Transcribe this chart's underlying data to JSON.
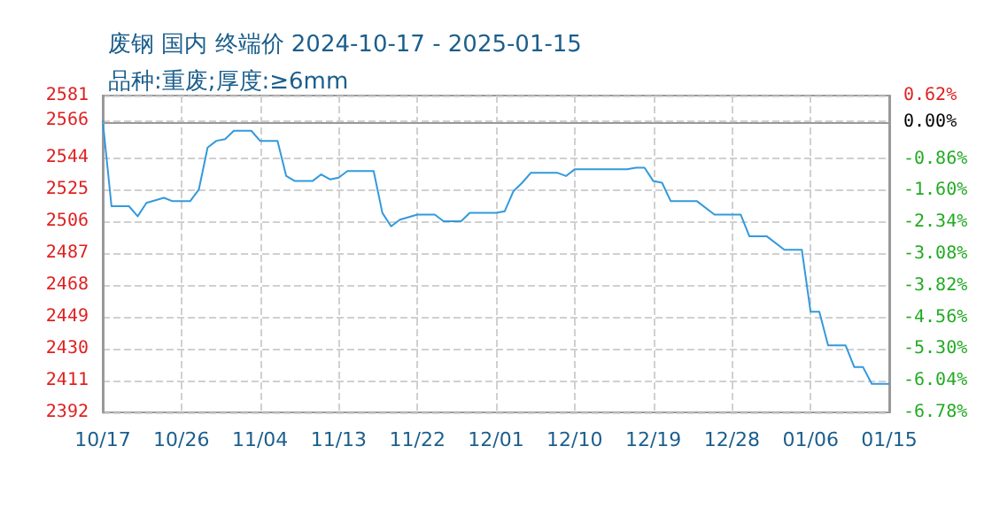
{
  "chart_data": {
    "type": "line",
    "title": "废钢 国内 终端价 2024-10-17 - 2025-01-15",
    "subtitle": "品种:重废;厚度:≥6mm",
    "x": [
      "2024-10-17",
      "2024-10-18",
      "2024-10-20",
      "2024-10-21",
      "2024-10-22",
      "2024-10-24",
      "2024-10-25",
      "2024-10-27",
      "2024-10-28",
      "2024-10-29",
      "2024-10-30",
      "2024-10-31",
      "2024-11-01",
      "2024-11-03",
      "2024-11-04",
      "2024-11-06",
      "2024-11-07",
      "2024-11-08",
      "2024-11-10",
      "2024-11-11",
      "2024-11-12",
      "2024-11-13",
      "2024-11-14",
      "2024-11-17",
      "2024-11-18",
      "2024-11-19",
      "2024-11-20",
      "2024-11-22",
      "2024-11-24",
      "2024-11-25",
      "2024-11-27",
      "2024-11-28",
      "2024-12-01",
      "2024-12-02",
      "2024-12-03",
      "2024-12-04",
      "2024-12-05",
      "2024-12-08",
      "2024-12-09",
      "2024-12-10",
      "2024-12-16",
      "2024-12-17",
      "2024-12-18",
      "2024-12-19",
      "2024-12-20",
      "2024-12-21",
      "2024-12-24",
      "2024-12-26",
      "2024-12-29",
      "2024-12-30",
      "2025-01-01",
      "2025-01-03",
      "2025-01-05",
      "2025-01-06",
      "2025-01-07",
      "2025-01-08",
      "2025-01-10",
      "2025-01-11",
      "2025-01-12",
      "2025-01-13",
      "2025-01-15"
    ],
    "series": [
      {
        "color": "#3399dd",
        "values": [
          2566,
          2515,
          2515,
          2509,
          2517,
          2520,
          2518,
          2518,
          2525,
          2550,
          2554,
          2555,
          2560,
          2560,
          2554,
          2554,
          2533,
          2530,
          2530,
          2534,
          2531,
          2532,
          2536,
          2536,
          2511,
          2503,
          2507,
          2510,
          2510,
          2506,
          2506,
          2511,
          2511,
          2512,
          2524,
          2529,
          2535,
          2535,
          2533,
          2537,
          2537,
          2538,
          2538,
          2530,
          2529,
          2518,
          2518,
          2510,
          2510,
          2497,
          2497,
          2489,
          2489,
          2452,
          2452,
          2432,
          2432,
          2419,
          2419,
          2409,
          2409
        ]
      }
    ],
    "xlim": [
      "2024-10-17",
      "2025-01-15"
    ],
    "xticks": [
      {
        "value": "2024-10-17",
        "label": "10/17"
      },
      {
        "value": "2024-10-26",
        "label": "10/26"
      },
      {
        "value": "2024-11-04",
        "label": "11/04"
      },
      {
        "value": "2024-11-13",
        "label": "11/13"
      },
      {
        "value": "2024-11-22",
        "label": "11/22"
      },
      {
        "value": "2024-12-01",
        "label": "12/01"
      },
      {
        "value": "2024-12-10",
        "label": "12/10"
      },
      {
        "value": "2024-12-19",
        "label": "12/19"
      },
      {
        "value": "2024-12-28",
        "label": "12/28"
      },
      {
        "value": "2025-01-06",
        "label": "01/06"
      },
      {
        "value": "2025-01-15",
        "label": "01/15"
      }
    ],
    "ylim": [
      2392,
      2581
    ],
    "yticks": [
      2392,
      2411,
      2430,
      2449,
      2468,
      2487,
      2506,
      2525,
      2544,
      2566,
      2581
    ],
    "y2lim": [
      -6.78,
      0.62
    ],
    "y2ticks": [
      {
        "value": -6.78,
        "label": "-6.78%"
      },
      {
        "value": -6.04,
        "label": "-6.04%"
      },
      {
        "value": -5.3,
        "label": "-5.30%"
      },
      {
        "value": -4.56,
        "label": "-4.56%"
      },
      {
        "value": -3.82,
        "label": "-3.82%"
      },
      {
        "value": -3.08,
        "label": "-3.08%"
      },
      {
        "value": -2.34,
        "label": "-2.34%"
      },
      {
        "value": -1.6,
        "label": "-1.60%"
      },
      {
        "value": -0.86,
        "label": "-0.86%"
      },
      {
        "value": 0,
        "label": "0.00%"
      },
      {
        "value": 0.62,
        "label": "0.62%"
      }
    ],
    "ref_lines": [
      {
        "axis": "y2",
        "value": 0,
        "color": "#999999"
      }
    ],
    "grid": true,
    "marker": "none",
    "line_style": "solid"
  }
}
